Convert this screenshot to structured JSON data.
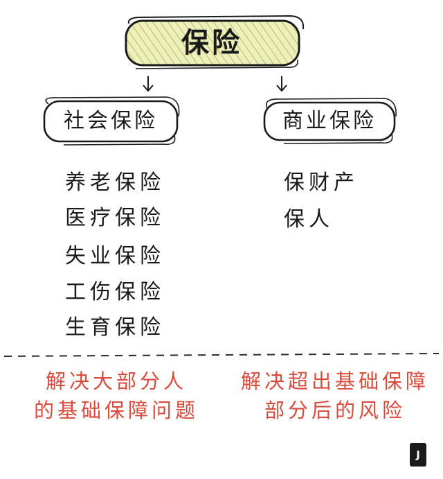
{
  "root": {
    "label": "保险"
  },
  "branches": [
    {
      "label": "社会保险",
      "items": [
        "养老保险",
        "医疗保险",
        "失业保险",
        "工伤保险",
        "生育保险"
      ],
      "note": [
        "解决大部分人",
        "的基础保障问题"
      ]
    },
    {
      "label": "商业保险",
      "items": [
        "保财产",
        "保人"
      ],
      "note": [
        "解决超出基础保障",
        "部分后的风险"
      ]
    }
  ],
  "logo": {
    "text": "J"
  },
  "colors": {
    "ink": "#1a1a1a",
    "highlight": "#eef0bc",
    "hatch": "#b9c06a",
    "note": "#d94c3d"
  }
}
